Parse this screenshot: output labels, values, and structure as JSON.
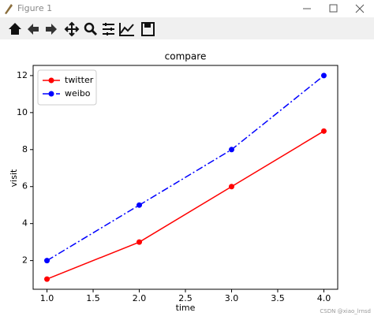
{
  "window": {
    "title": "Figure 1"
  },
  "watermark": "CSDN @xiao_lrnsd",
  "chart_data": {
    "type": "line",
    "title": "compare",
    "x_label": "time",
    "y_label": "visit",
    "x": [
      1,
      2,
      3,
      4
    ],
    "series": [
      {
        "name": "twitter",
        "color": "#ff0000",
        "linestyle": "solid",
        "values": [
          1,
          3,
          6,
          9
        ]
      },
      {
        "name": "weibo",
        "color": "#0000ff",
        "linestyle": "dashdot",
        "values": [
          2,
          5,
          8,
          12
        ]
      }
    ],
    "xlim": [
      0.85,
      4.15
    ],
    "xticks": [
      {
        "value": 1,
        "label": "1.0"
      },
      {
        "value": 1.5,
        "label": "1.5"
      },
      {
        "value": 2,
        "label": "2.0"
      },
      {
        "value": 2.5,
        "label": "2.5"
      },
      {
        "value": 3,
        "label": "3.0"
      },
      {
        "value": 3.5,
        "label": "3.5"
      },
      {
        "value": 4,
        "label": "4.0"
      }
    ],
    "ylim": [
      0.45,
      12.55
    ],
    "yticks": [
      2,
      4,
      6,
      8,
      10,
      12
    ],
    "legend": "upper left",
    "grid": false
  }
}
